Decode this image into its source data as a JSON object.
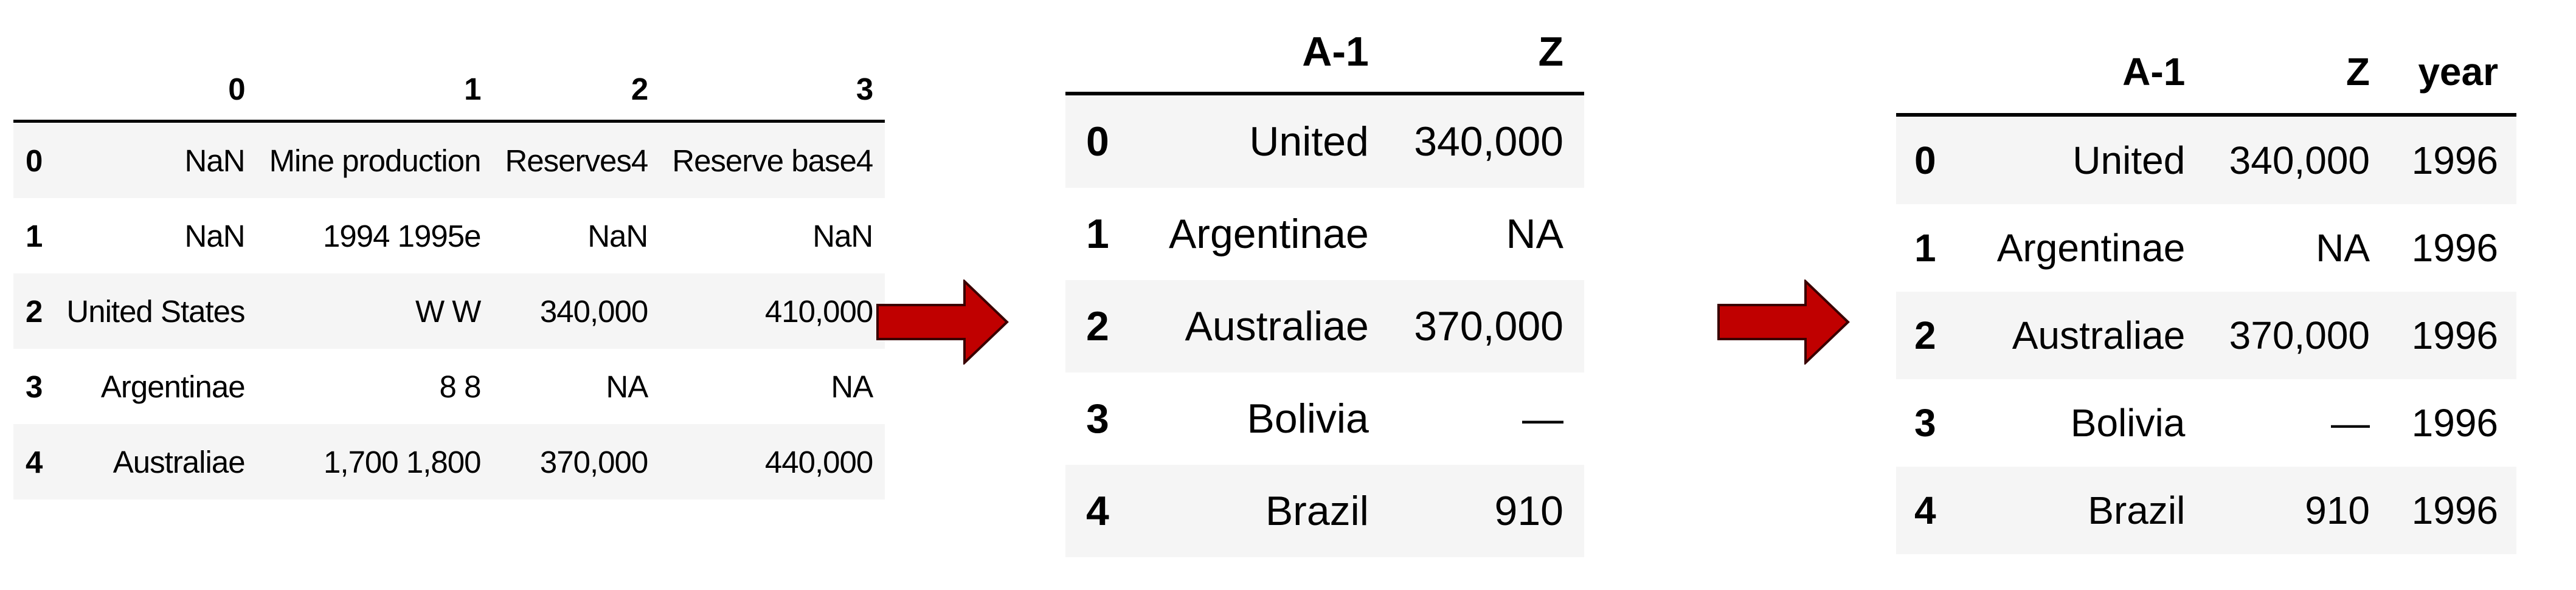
{
  "arrow_color": "#c00000",
  "table1": {
    "headers": [
      "",
      "0",
      "1",
      "2",
      "3"
    ],
    "rows": [
      [
        "0",
        "NaN",
        "Mine production",
        "Reserves4",
        "Reserve base4"
      ],
      [
        "1",
        "NaN",
        "1994 1995e",
        "NaN",
        "NaN"
      ],
      [
        "2",
        "United States",
        "W W",
        "340,000",
        "410,000"
      ],
      [
        "3",
        "Argentinae",
        "8 8",
        "NA",
        "NA"
      ],
      [
        "4",
        "Australiae",
        "1,700 1,800",
        "370,000",
        "440,000"
      ]
    ]
  },
  "table2": {
    "headers": [
      "",
      "A-1",
      "Z"
    ],
    "rows": [
      [
        "0",
        "United",
        "340,000"
      ],
      [
        "1",
        "Argentinae",
        "NA"
      ],
      [
        "2",
        "Australiae",
        "370,000"
      ],
      [
        "3",
        "Bolivia",
        "—"
      ],
      [
        "4",
        "Brazil",
        "910"
      ]
    ]
  },
  "table3": {
    "headers": [
      "",
      "A-1",
      "Z",
      "year"
    ],
    "rows": [
      [
        "0",
        "United",
        "340,000",
        "1996"
      ],
      [
        "1",
        "Argentinae",
        "NA",
        "1996"
      ],
      [
        "2",
        "Australiae",
        "370,000",
        "1996"
      ],
      [
        "3",
        "Bolivia",
        "—",
        "1996"
      ],
      [
        "4",
        "Brazil",
        "910",
        "1996"
      ]
    ]
  }
}
